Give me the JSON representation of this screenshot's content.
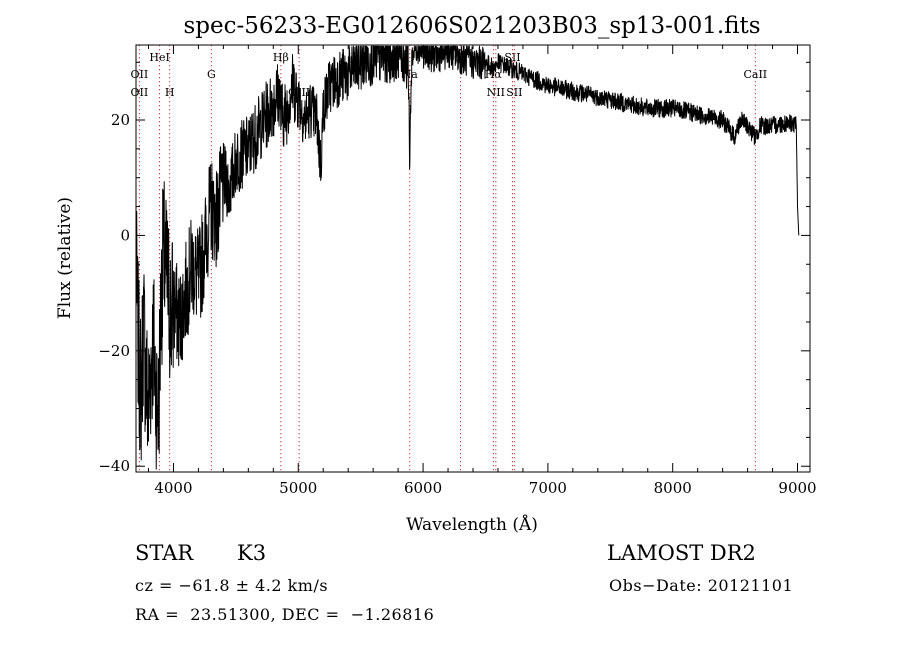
{
  "chart_data": {
    "type": "line",
    "title": "spec-56233-EG012606S021203B03_sp13-001.fits",
    "xlabel": "Wavelength (Å)",
    "ylabel": "Flux (relative)",
    "xlim": [
      3700,
      9100
    ],
    "ylim": [
      -41,
      33
    ],
    "x_ticks": [
      4000,
      5000,
      6000,
      7000,
      8000,
      9000
    ],
    "y_ticks": [
      -40,
      -20,
      0,
      20
    ],
    "grid": false,
    "series": [
      {
        "x": [
          3700,
          3720,
          3740,
          3760,
          3780,
          3800,
          3820,
          3840,
          3860,
          3880,
          3900,
          3920,
          3950,
          3980,
          4000,
          4050,
          4100,
          4150,
          4200,
          4250,
          4300,
          4350,
          4400,
          4450,
          4500,
          4600,
          4700,
          4800,
          4850,
          4861,
          4900,
          4950,
          5000,
          5050,
          5100,
          5150,
          5180,
          5200,
          5250,
          5300,
          5400,
          5500,
          5600,
          5700,
          5800,
          5850,
          5880,
          5893,
          5910,
          5950,
          6000,
          6100,
          6200,
          6300,
          6400,
          6500,
          6563,
          6600,
          6700,
          6800,
          6900,
          7000,
          7200,
          7400,
          7600,
          7800,
          8000,
          8200,
          8400,
          8498,
          8542,
          8600,
          8662,
          8700,
          8800,
          8900,
          8950,
          8990,
          9000,
          9010
        ],
        "y": [
          -5,
          -20,
          -28,
          -15,
          -25,
          -30,
          -22,
          -18,
          -27,
          -31,
          -12,
          -3,
          -8,
          -14,
          -12,
          -15,
          -10,
          -5,
          -8,
          -2,
          5,
          3,
          10,
          8,
          13,
          15,
          19,
          23,
          25,
          21,
          21,
          26,
          24,
          20,
          22,
          20,
          12,
          22,
          26,
          27,
          28,
          30,
          31,
          31,
          32,
          31,
          30,
          14,
          31,
          33,
          32,
          31,
          32,
          31,
          30,
          30,
          29,
          30,
          29,
          28,
          27,
          26,
          25,
          24,
          23,
          22,
          22,
          21,
          20,
          17,
          20,
          19,
          17,
          19,
          19,
          19.5,
          19.5,
          19,
          5,
          0
        ]
      }
    ],
    "line_markers": [
      {
        "label": "OII",
        "x": 3727,
        "row": "top"
      },
      {
        "label": "OII",
        "x": 3727,
        "row": "low"
      },
      {
        "label": "HeI",
        "x": 3889,
        "row": "high"
      },
      {
        "label": "H",
        "x": 3970,
        "row": "low"
      },
      {
        "label": "G",
        "x": 4304,
        "row": "top"
      },
      {
        "label": "Hβ",
        "x": 4861,
        "row": "high"
      },
      {
        "label": "OIII",
        "x": 5007,
        "row": "low"
      },
      {
        "label": "Na",
        "x": 5893,
        "row": "top"
      },
      {
        "label": "OI",
        "x": 6300,
        "row": "high"
      },
      {
        "label": "Hα",
        "x": 6563,
        "row": "top"
      },
      {
        "label": "NII",
        "x": 6583,
        "row": "low"
      },
      {
        "label": "SII",
        "x": 6716,
        "row": "high"
      },
      {
        "label": "SII",
        "x": 6731,
        "row": "low"
      },
      {
        "label": "CaII",
        "x": 8662,
        "row": "top"
      }
    ]
  },
  "info": {
    "object_class": "STAR",
    "subclass": "K3",
    "survey": "LAMOST DR2",
    "cz": "cz = −61.8 ± 4.2 km/s",
    "obs_date": "Obs−Date: 20121101",
    "coords": "RA =  23.51300, DEC =  −1.26816"
  }
}
